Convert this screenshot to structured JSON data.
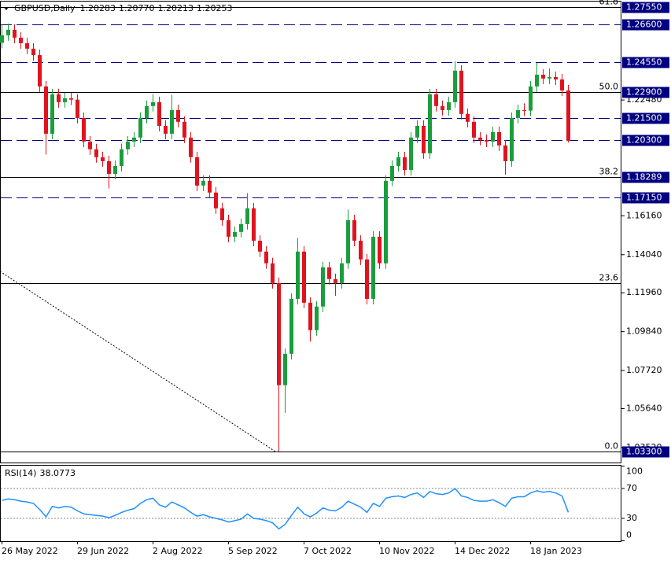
{
  "chart_data": {
    "type": "candlestick",
    "title": "GBPUSD,Daily",
    "quote": [
      1.20283,
      {
        "value": 1.2077,
        "label": "1.20770"
      },
      1.20213,
      1.20253
    ],
    "categories": [
      "26 May 2022",
      null,
      null,
      null,
      null,
      null,
      null,
      null,
      null,
      null,
      null,
      null,
      "29 Jun 2022",
      null,
      null,
      null,
      null,
      null,
      null,
      null,
      null,
      null,
      null,
      null,
      "2 Aug 2022",
      null,
      null,
      null,
      null,
      null,
      null,
      null,
      null,
      null,
      null,
      null,
      "5 Sep 2022",
      null,
      null,
      null,
      null,
      null,
      null,
      null,
      null,
      null,
      null,
      null,
      "7 Oct 2022",
      null,
      null,
      null,
      null,
      null,
      null,
      null,
      null,
      null,
      null,
      null,
      "10 Nov 2022",
      null,
      null,
      null,
      null,
      null,
      null,
      null,
      null,
      null,
      null,
      null,
      "14 Dec 2022",
      null,
      null,
      null,
      null,
      null,
      null,
      null,
      null,
      null,
      null,
      null,
      "18 Jan 2023",
      null,
      null,
      null,
      null,
      null,
      null
    ],
    "open": [
      1.256,
      1.2601,
      1.2631,
      1.2588,
      1.2558,
      1.2528,
      1.2493,
      1.2322,
      1.2064,
      1.2279,
      1.2236,
      1.2257,
      1.225,
      1.215,
      1.2021,
      1.1979,
      1.1936,
      1.1914,
      1.1845,
      1.1888,
      1.1979,
      1.2021,
      1.2043,
      1.215,
      1.2215,
      1.2236,
      1.2107,
      1.2064,
      1.2193,
      1.2129,
      1.2043,
      1.1936,
      1.1781,
      1.1807,
      1.1743,
      1.1657,
      1.1592,
      1.1502,
      1.1528,
      1.1571,
      1.1657,
      1.148,
      1.1421,
      1.1357,
      1.1249,
      1.0692,
      1.0863,
      1.1163,
      1.1421,
      1.1142,
      1.0992,
      1.1121,
      1.1335,
      1.1271,
      1.1249,
      1.1357,
      1.1592,
      1.148,
      1.1378,
      1.1163,
      1.1502,
      1.1357,
      1.1807,
      1.1888,
      1.1936,
      1.1866,
      1.2043,
      1.2107,
      1.1957,
      1.2279,
      1.2215,
      1.2193,
      1.2236,
      1.2408,
      1.2172,
      1.2129,
      1.2043,
      1.203,
      1.2021,
      1.2073,
      1.2,
      1.1914,
      1.215,
      1.2193,
      1.219,
      1.2322,
      1.2386,
      1.2365,
      1.2373,
      1.236,
      1.23
    ],
    "high": [
      1.266,
      1.2665,
      1.2661,
      1.2618,
      1.2588,
      1.2558,
      1.2523,
      1.2352,
      1.2309,
      1.2309,
      1.2287,
      1.2287,
      1.228,
      1.218,
      1.2051,
      1.2009,
      1.1966,
      1.1944,
      1.1918,
      1.2009,
      1.2051,
      1.2073,
      1.218,
      1.2245,
      1.228,
      1.2266,
      1.2137,
      1.2276,
      1.2223,
      1.2159,
      1.2073,
      1.1966,
      1.1837,
      1.1837,
      1.1773,
      1.1687,
      1.1622,
      1.1558,
      1.1601,
      1.174,
      1.1687,
      1.151,
      1.1451,
      1.1387,
      1.1279,
      1.0893,
      1.1193,
      1.1495,
      1.1451,
      1.1172,
      1.1151,
      1.1365,
      1.1365,
      1.1301,
      1.1387,
      1.165,
      1.1622,
      1.151,
      1.1408,
      1.1532,
      1.1532,
      1.1837,
      1.1918,
      1.1966,
      1.1966,
      1.2073,
      1.2137,
      1.2137,
      1.2309,
      1.2309,
      1.2245,
      1.2266,
      1.246,
      1.2438,
      1.2202,
      1.2159,
      1.2073,
      1.206,
      1.2103,
      1.2103,
      1.203,
      1.218,
      1.2223,
      1.223,
      1.2352,
      1.245,
      1.2416,
      1.242,
      1.2403,
      1.239,
      1.233
    ],
    "low": [
      1.253,
      1.2571,
      1.2558,
      1.2528,
      1.2498,
      1.2463,
      1.2292,
      1.195,
      1.2034,
      1.2206,
      1.2206,
      1.222,
      1.212,
      1.1991,
      1.1949,
      1.1906,
      1.1884,
      1.1765,
      1.1815,
      1.1858,
      1.1949,
      1.1991,
      1.2013,
      1.212,
      1.2185,
      1.2077,
      1.2034,
      1.2034,
      1.2099,
      1.2013,
      1.1906,
      1.1751,
      1.1751,
      1.1713,
      1.1627,
      1.1562,
      1.1472,
      1.1472,
      1.1498,
      1.1541,
      1.145,
      1.1391,
      1.1327,
      1.1219,
      1.033,
      1.0541,
      1.0833,
      1.1133,
      1.1112,
      1.093,
      1.0962,
      1.1091,
      1.1241,
      1.118,
      1.1219,
      1.1327,
      1.145,
      1.1348,
      1.1133,
      1.1133,
      1.1327,
      1.1327,
      1.1777,
      1.1858,
      1.1836,
      1.1836,
      1.2013,
      1.1927,
      1.1927,
      1.2185,
      1.2163,
      1.2163,
      1.2206,
      1.2142,
      1.2099,
      1.2013,
      1.2,
      1.1991,
      1.1991,
      1.197,
      1.184,
      1.1884,
      1.212,
      1.216,
      1.216,
      1.2292,
      1.2335,
      1.2335,
      1.233,
      1.227,
      1.2015
    ],
    "close": [
      1.2601,
      1.2631,
      1.2588,
      1.2558,
      1.2528,
      1.2493,
      1.2322,
      1.2064,
      1.2279,
      1.2236,
      1.2257,
      1.225,
      1.215,
      1.2021,
      1.1979,
      1.1936,
      1.1914,
      1.1845,
      1.1888,
      1.1979,
      1.2021,
      1.2043,
      1.215,
      1.2215,
      1.2236,
      1.2107,
      1.2064,
      1.2193,
      1.2129,
      1.2043,
      1.1936,
      1.1781,
      1.1807,
      1.1743,
      1.1657,
      1.1592,
      1.1502,
      1.1528,
      1.1571,
      1.1657,
      1.148,
      1.1421,
      1.1357,
      1.1249,
      1.0692,
      1.0863,
      1.1163,
      1.1421,
      1.1142,
      1.0992,
      1.1121,
      1.1335,
      1.1271,
      1.1249,
      1.1357,
      1.1592,
      1.148,
      1.1378,
      1.1163,
      1.1502,
      1.1357,
      1.1807,
      1.1888,
      1.1936,
      1.1866,
      1.2043,
      1.2107,
      1.1957,
      1.2279,
      1.2215,
      1.2193,
      1.2236,
      1.2408,
      1.2172,
      1.2129,
      1.2043,
      1.203,
      1.2021,
      1.2073,
      1.2,
      1.1914,
      1.215,
      1.2193,
      1.219,
      1.2322,
      1.2386,
      1.2365,
      1.2373,
      1.236,
      1.23,
      1.2025
    ],
    "up_color": "#1a9e3c",
    "down_color": "#e0141e",
    "ylim": [
      1.027,
      1.2785
    ],
    "yticks": [
      {
        "value": 1.2248,
        "label": "1.22480"
      },
      {
        "value": 1.1616,
        "label": "1.16160"
      },
      {
        "value": 1.1404,
        "label": "1.14040"
      },
      {
        "value": 1.1196,
        "label": "1.11960"
      },
      {
        "value": 1.0984,
        "label": "1.09840"
      },
      {
        "value": 1.0772,
        "label": "1.07720"
      },
      {
        "value": 1.0564,
        "label": "1.05640"
      },
      {
        "value": 1.0352,
        "label": "1.03520"
      }
    ],
    "hlines": [
      {
        "value": 1.2755,
        "label": "1.27550",
        "style": "solid",
        "level": "61.8"
      },
      {
        "value": 1.266,
        "label": "1.26600",
        "style": "dashed"
      },
      {
        "value": 1.2455,
        "label": "1.24550",
        "style": "dashed"
      },
      {
        "value": 1.229,
        "label": "1.22900",
        "style": "solid",
        "level": "50.0"
      },
      {
        "value": 1.215,
        "label": "1.21500",
        "style": "dashed"
      },
      {
        "value": 1.203,
        "label": "1.20300",
        "style": "dashed"
      },
      {
        "value": 1.18289,
        "label": "1.18289",
        "style": "solid",
        "level": "38.2"
      },
      {
        "value": 1.1715,
        "label": "1.17150",
        "style": "dashed"
      },
      {
        "value": 1.1249,
        "style": "solid",
        "level": "23.6"
      },
      {
        "value": 1.033,
        "label": "1.03300",
        "style": "solid",
        "level": "0.0"
      }
    ],
    "rsi": {
      "name": "RSI(14)",
      "color": "#1e90ff",
      "ylim": [
        0,
        100
      ],
      "yticks": [
        100,
        70,
        30,
        0
      ],
      "levels": [
        70,
        30
      ],
      "values": [
        54,
        56,
        55,
        53,
        52,
        50,
        42,
        32,
        46,
        44,
        46,
        45,
        40,
        36,
        35,
        34,
        33,
        31,
        34,
        38,
        41,
        43,
        50,
        55,
        57,
        48,
        45,
        52,
        48,
        44,
        38,
        33,
        35,
        32,
        30,
        28,
        25,
        27,
        29,
        36,
        30,
        29,
        27,
        24,
        16,
        22,
        34,
        45,
        36,
        32,
        37,
        44,
        41,
        40,
        45,
        53,
        49,
        45,
        38,
        50,
        46,
        57,
        59,
        60,
        58,
        62,
        64,
        58,
        66,
        63,
        62,
        64,
        70,
        60,
        58,
        54,
        53,
        53,
        55,
        51,
        46,
        57,
        59,
        59,
        64,
        67,
        65,
        66,
        64,
        60,
        38.0773
      ]
    }
  }
}
